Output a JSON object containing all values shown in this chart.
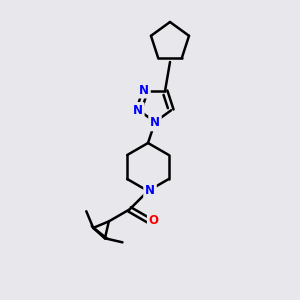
{
  "background_color": "#e8e8ec",
  "bond_color": "#000000",
  "N_color": "#0000ff",
  "O_color": "#ff0000",
  "line_width": 1.8,
  "font_size": 8.5,
  "figsize": [
    3.0,
    3.0
  ],
  "dpi": 100,
  "xlim": [
    0,
    300
  ],
  "ylim": [
    0,
    300
  ]
}
